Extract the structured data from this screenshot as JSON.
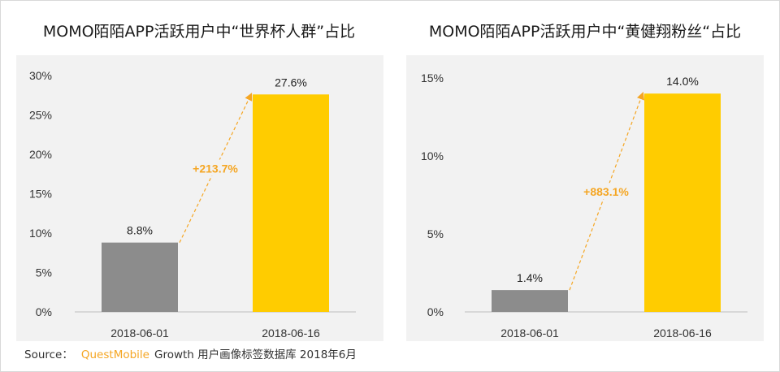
{
  "colors": {
    "bar_start": "#8c8c8c",
    "bar_end": "#ffcc00",
    "growth": "#f5a623",
    "panel_bg": "#f2f2f2"
  },
  "source": {
    "label": "Source：",
    "brand": "QuestMobile",
    "text": "Growth 用户画像标签数据库 2018年6月"
  },
  "chart_data": [
    {
      "type": "bar",
      "title": "MOMO陌陌APP活跃用户中“世界杯人群”占比",
      "categories": [
        "2018-06-01",
        "2018-06-16"
      ],
      "values": [
        8.8,
        27.6
      ],
      "data_labels": [
        "8.8%",
        "27.6%"
      ],
      "ylim": [
        0,
        30
      ],
      "yticks": [
        0,
        5,
        10,
        15,
        20,
        25,
        30
      ],
      "ytick_labels": [
        "0%",
        "5%",
        "10%",
        "15%",
        "20%",
        "25%",
        "30%"
      ],
      "growth_label": "+213.7%",
      "grid": false,
      "legend": "none"
    },
    {
      "type": "bar",
      "title": "MOMO陌陌APP活跃用户中“黄健翔粉丝“占比",
      "categories": [
        "2018-06-01",
        "2018-06-16"
      ],
      "values": [
        1.4,
        14.0
      ],
      "data_labels": [
        "1.4%",
        "14.0%"
      ],
      "ylim": [
        0,
        15
      ],
      "yticks": [
        0,
        5,
        10,
        15
      ],
      "ytick_labels": [
        "0%",
        "5%",
        "10%",
        "15%"
      ],
      "growth_label": "+883.1%",
      "grid": false,
      "legend": "none"
    }
  ]
}
